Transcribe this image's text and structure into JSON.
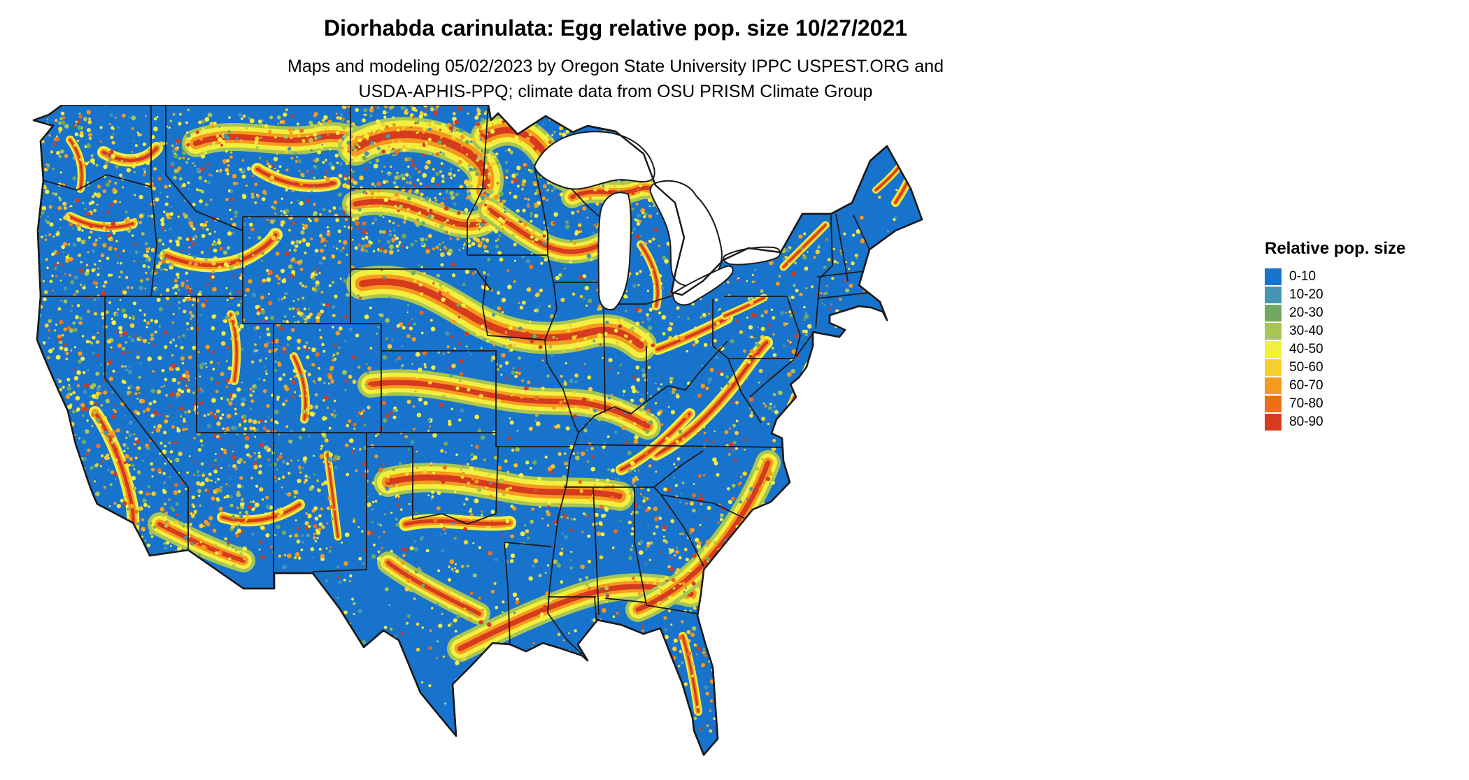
{
  "header": {
    "title": "Diorhabda carinulata: Egg relative pop. size 10/27/2021",
    "subtitle_line1": "Maps and modeling 05/02/2023 by Oregon State University IPPC USPEST.ORG and",
    "subtitle_line2": "USDA-APHIS-PPQ; climate data from OSU PRISM Climate Group"
  },
  "legend": {
    "title": "Relative pop. size",
    "items": [
      {
        "label": "0-10",
        "color": "#1873cd"
      },
      {
        "label": "10-20",
        "color": "#4695b5"
      },
      {
        "label": "20-30",
        "color": "#70a95f"
      },
      {
        "label": "30-40",
        "color": "#a8c653"
      },
      {
        "label": "40-50",
        "color": "#f2ef3f"
      },
      {
        "label": "50-60",
        "color": "#f6cf2e"
      },
      {
        "label": "60-70",
        "color": "#f69a1d"
      },
      {
        "label": "70-80",
        "color": "#ed7019"
      },
      {
        "label": "80-90",
        "color": "#d63a1f"
      }
    ]
  },
  "map": {
    "region_label": "Continental United States",
    "base_color": "#1873cd",
    "border_color": "#1a1a1a",
    "water_color": "#ffffff"
  }
}
